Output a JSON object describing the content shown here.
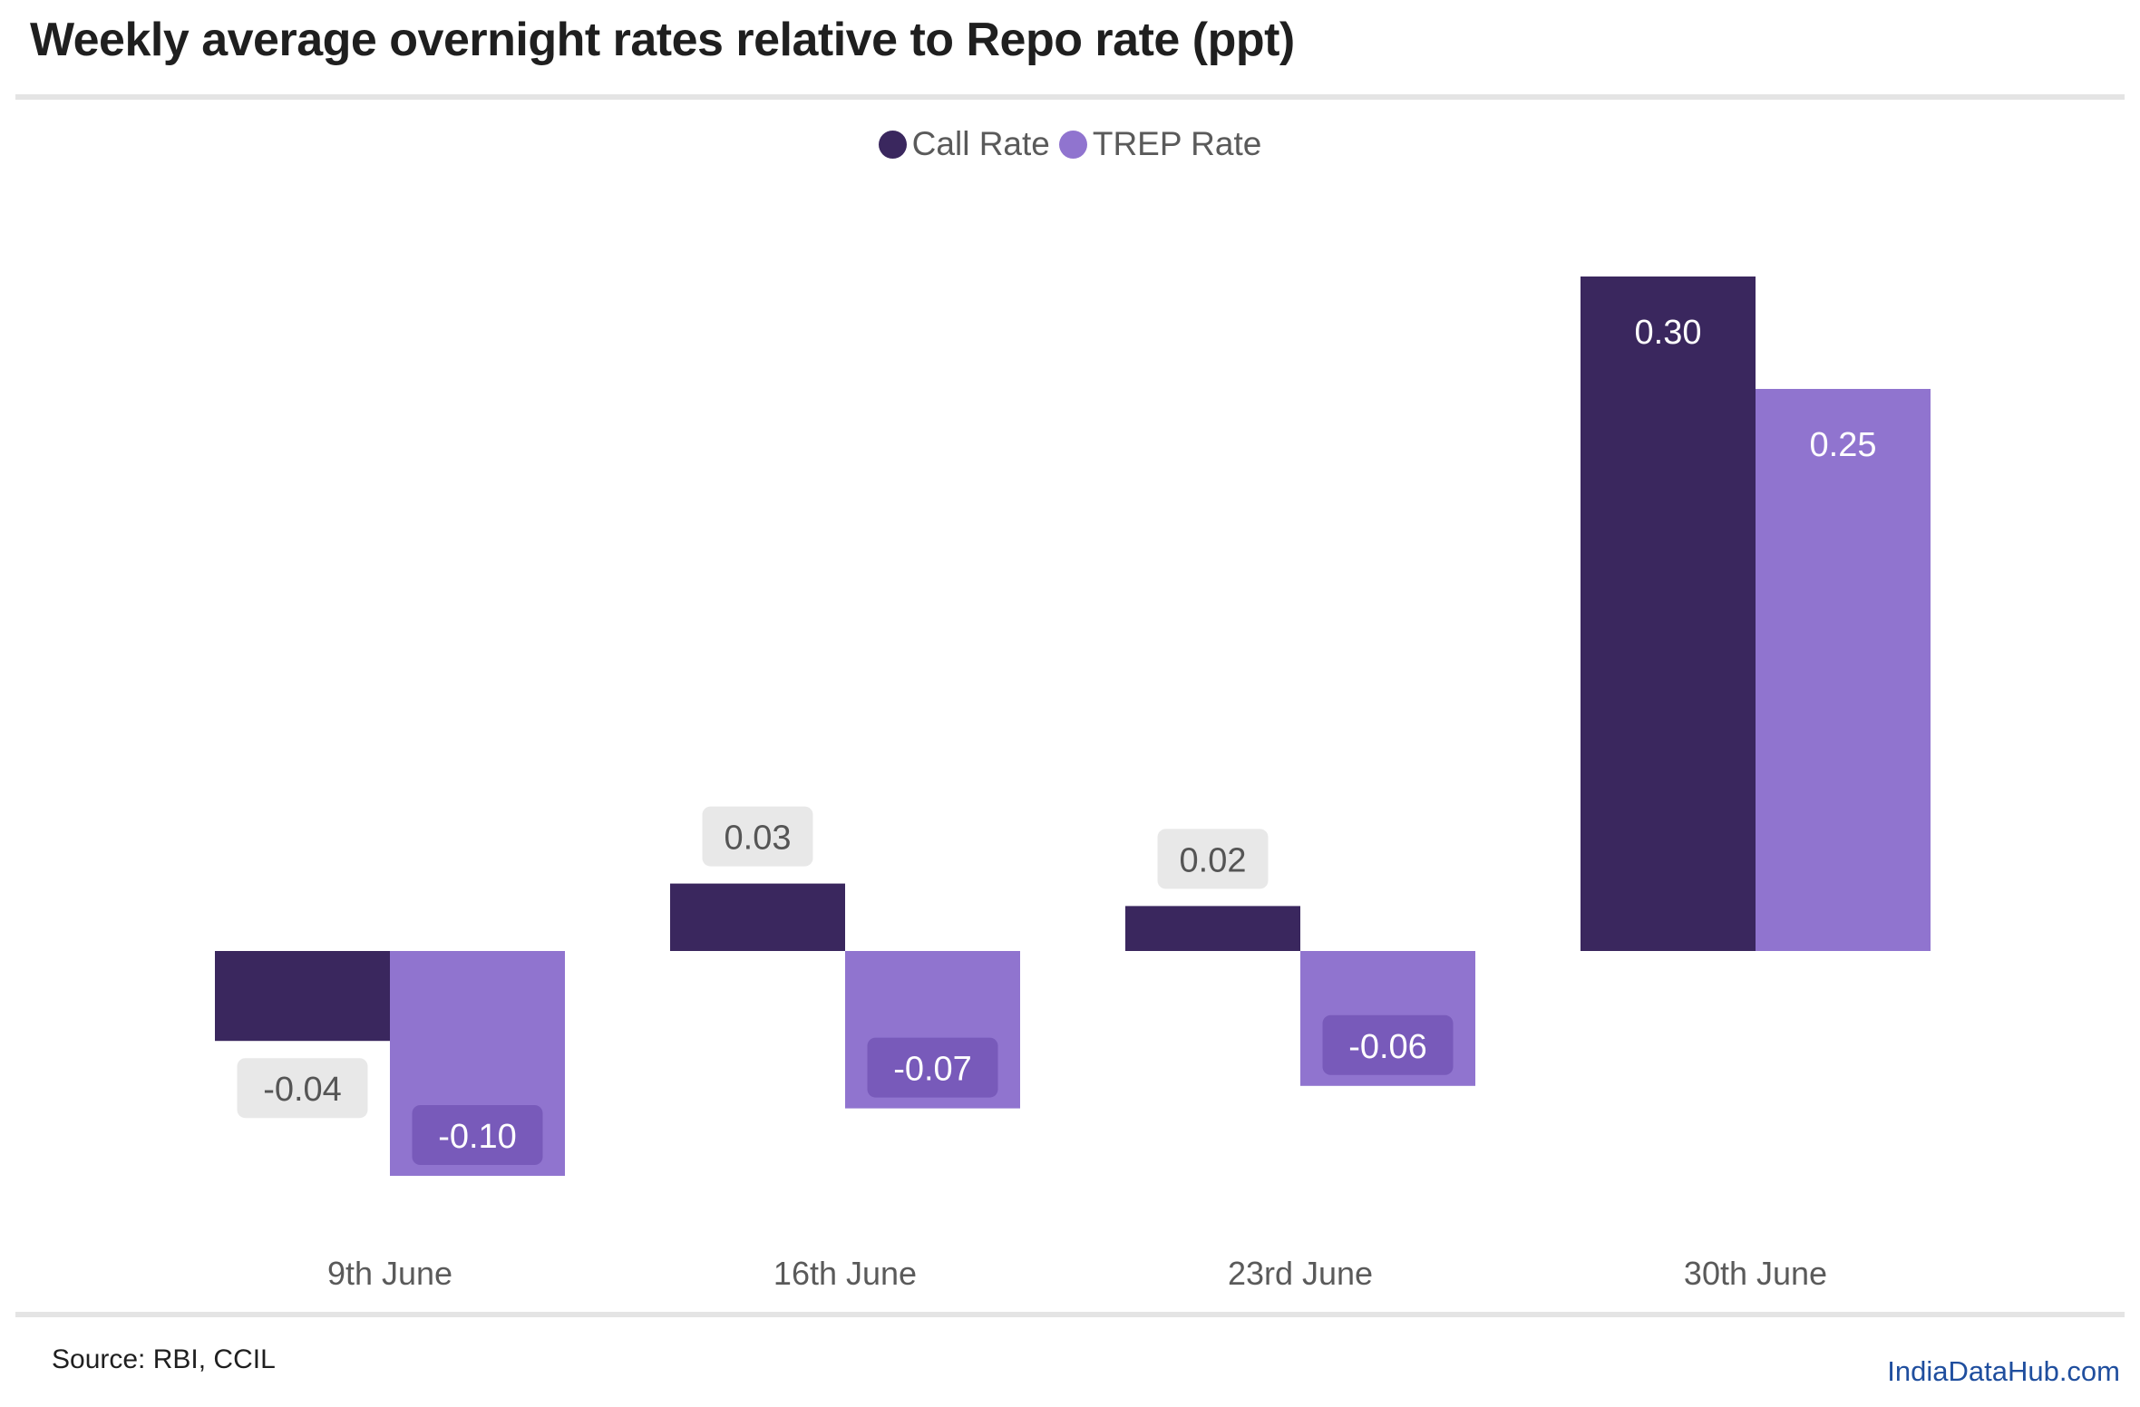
{
  "title": "Weekly average overnight rates relative to Repo rate (ppt)",
  "chart_data": {
    "type": "bar",
    "categories": [
      "9th June",
      "16th June",
      "23rd June",
      "30th June"
    ],
    "series": [
      {
        "name": "Call Rate",
        "color": "#3a275e",
        "values": [
          -0.04,
          0.03,
          0.02,
          0.3
        ],
        "labels": [
          "-0.04",
          "0.03",
          "0.02",
          "0.30"
        ]
      },
      {
        "name": "TREP Rate",
        "color": "#9074cf",
        "values": [
          -0.1,
          -0.07,
          -0.06,
          0.25
        ],
        "labels": [
          "-0.10",
          "-0.07",
          "-0.06",
          "0.25"
        ]
      }
    ],
    "ylim": [
      -0.12,
      0.32
    ],
    "grid": false,
    "legend": "top-center",
    "xlabel": "",
    "ylabel": ""
  },
  "source": "Source: RBI, CCIL",
  "brand": "IndiaDataHub.com"
}
